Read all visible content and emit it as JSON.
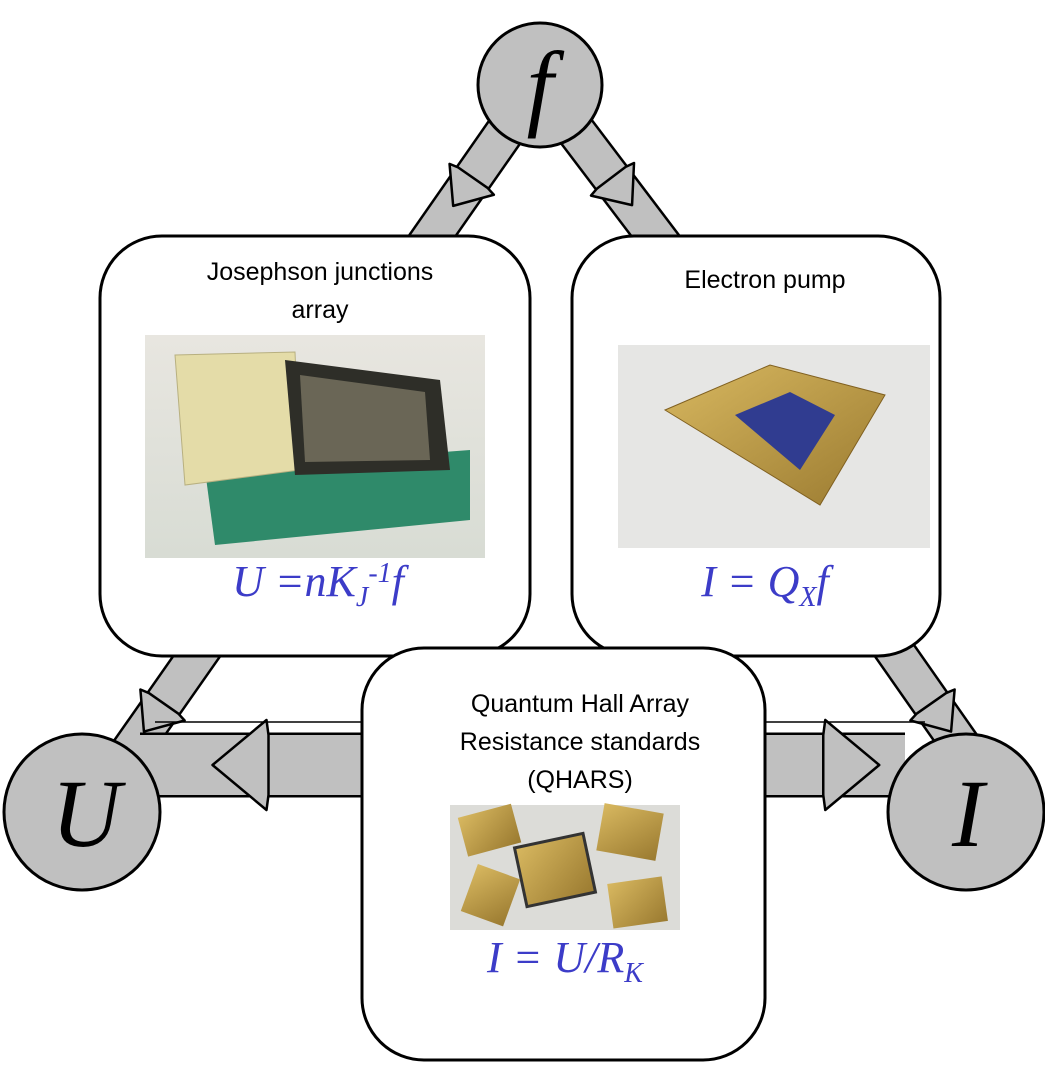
{
  "nodes": [
    {
      "label": "f"
    },
    {
      "label": "U"
    },
    {
      "label": "I"
    }
  ],
  "boxes": [
    {
      "title": [
        "Josephson junctions",
        "array"
      ],
      "formula": [
        "U =nK",
        "J",
        "-1",
        "f"
      ]
    },
    {
      "title": [
        "Electron pump"
      ],
      "formula": [
        "I = Q",
        "X",
        "f"
      ]
    },
    {
      "title": [
        "Quantum Hall Array",
        "Resistance standards",
        "(QHARS)"
      ],
      "formula": [
        "I = U/R",
        "K"
      ]
    }
  ]
}
